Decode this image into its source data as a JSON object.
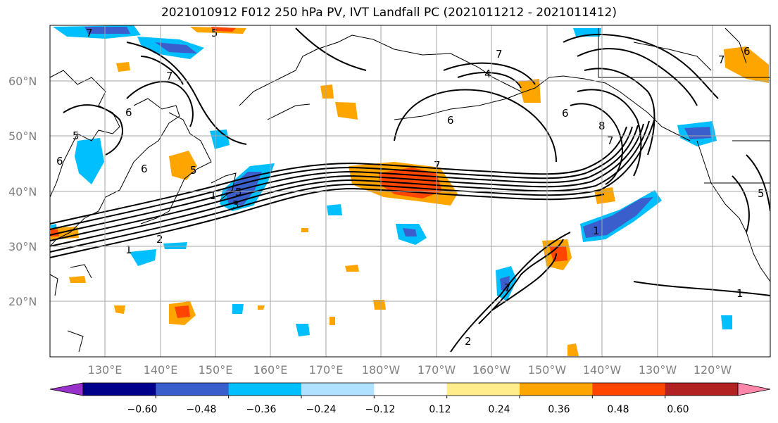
{
  "title": "2021010912 F012 250 hPa PV, IVT Landfall PC (2021011212 - 2021011412)",
  "latitude_labels": [
    "60°N",
    "50°N",
    "40°N",
    "30°N",
    "20°N"
  ],
  "longitude_labels": [
    "130°E",
    "140°E",
    "150°E",
    "160°E",
    "170°E",
    "180°W",
    "170°W",
    "160°W",
    "150°W",
    "140°W",
    "130°W",
    "120°W"
  ],
  "colorbar": {
    "tick_labels": [
      "−0.60",
      "−0.48",
      "−0.36",
      "−0.24",
      "−0.12",
      "0.12",
      "0.24",
      "0.36",
      "0.48",
      "0.60"
    ],
    "colors": [
      "#9932cc",
      "#00008b",
      "#3a5fcd",
      "#00bfff",
      "#b0e2ff",
      "#ffffff",
      "#ffec8b",
      "#ffa500",
      "#ff4500",
      "#b22222",
      "#ff88aa"
    ]
  },
  "contour_labels": [
    "7",
    "5",
    "7",
    "5",
    "6",
    "6",
    "6",
    "5",
    "1",
    "1",
    "2",
    "5",
    "3",
    "7",
    "4",
    "6",
    "7",
    "6",
    "8",
    "7",
    "1",
    "5",
    "1",
    "7",
    "2",
    "7",
    "6"
  ]
}
